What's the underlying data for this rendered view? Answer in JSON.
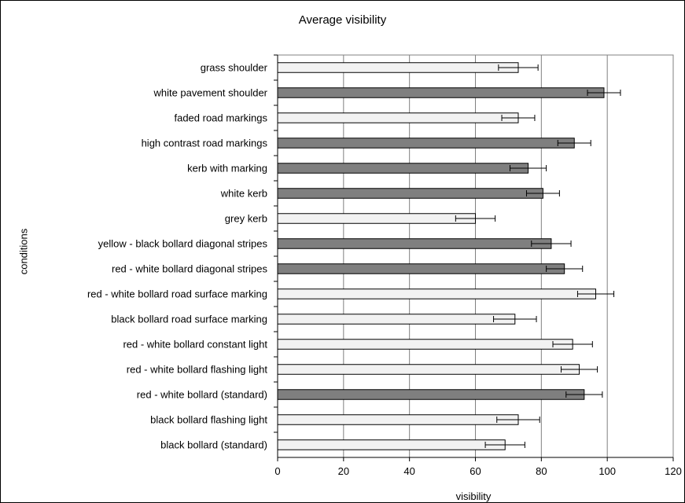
{
  "chart_data": {
    "type": "bar",
    "orientation": "horizontal",
    "title": "Average visibility",
    "xlabel": "visibility",
    "ylabel": "conditions",
    "xlim": [
      0,
      120
    ],
    "xticks": [
      "0",
      "20",
      "40",
      "60",
      "80",
      "100",
      "120"
    ],
    "grid": "vertical gridlines",
    "legend": "none",
    "colors": {
      "light": "#f2f2f2",
      "dark": "#7f7f7f",
      "grid": "#808080"
    },
    "categories": [
      "grass shoulder",
      "white pavement shoulder",
      "faded road markings",
      "high contrast road markings",
      "kerb with marking",
      "white kerb",
      "grey kerb",
      "yellow - black bollard diagonal stripes",
      "red - white bollard diagonal stripes",
      "red - white bollard road surface marking",
      "black bollard road surface marking",
      "red - white bollard constant light",
      "red - white bollard flashing light",
      "red - white bollard (standard)",
      "black bollard flashing light",
      "black bollard (standard)"
    ],
    "values": [
      73,
      99,
      73,
      90,
      76,
      80.5,
      60,
      83,
      87,
      96.5,
      72,
      89.5,
      91.5,
      93,
      73,
      69
    ],
    "error": [
      6,
      5,
      5,
      5,
      5.5,
      5,
      6,
      6,
      5.5,
      5.5,
      6.5,
      6,
      5.5,
      5.5,
      6.5,
      6
    ],
    "shade": [
      "light",
      "dark",
      "light",
      "dark",
      "dark",
      "dark",
      "light",
      "dark",
      "dark",
      "light",
      "light",
      "light",
      "light",
      "dark",
      "light",
      "light"
    ]
  }
}
